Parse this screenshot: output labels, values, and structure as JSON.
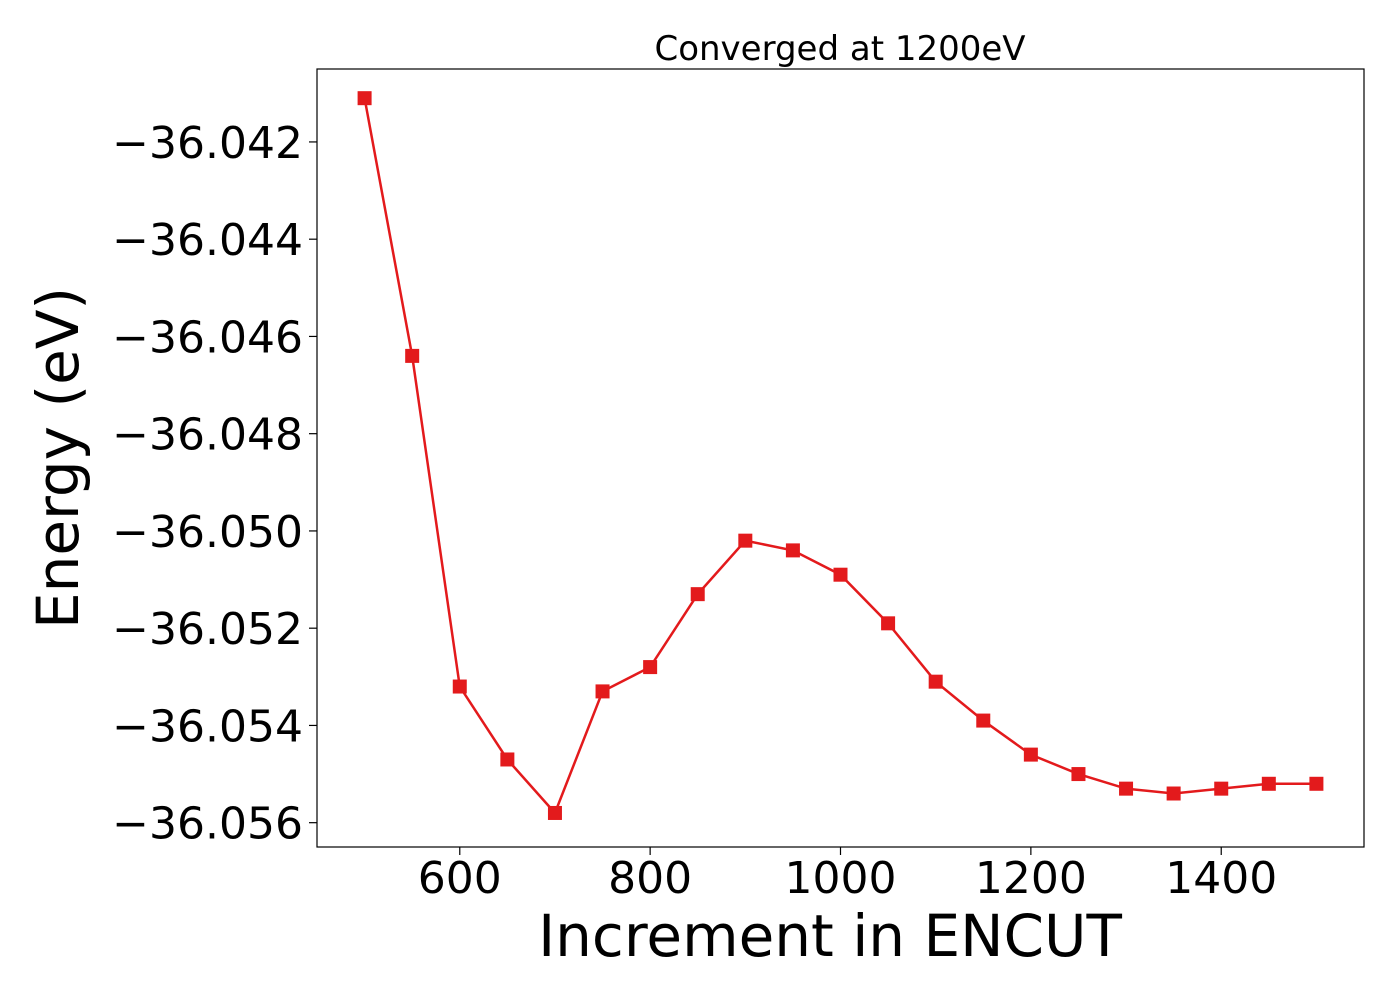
{
  "chart_data": {
    "type": "line",
    "title": "Converged at 1200eV",
    "xlabel": "Increment in ENCUT",
    "ylabel": "Energy (eV)",
    "xlim": [
      450,
      1550
    ],
    "ylim": [
      -36.0565,
      -36.0405
    ],
    "x_ticks": [
      600,
      800,
      1000,
      1200,
      1400
    ],
    "y_ticks": [
      -36.042,
      -36.044,
      -36.046,
      -36.048,
      -36.05,
      -36.052,
      -36.054,
      -36.056
    ],
    "x_tick_labels": [
      "600",
      "800",
      "1000",
      "1200",
      "1400"
    ],
    "y_tick_labels": [
      "−36.042",
      "−36.044",
      "−36.046",
      "−36.048",
      "−36.050",
      "−36.052",
      "−36.054",
      "−36.056"
    ],
    "grid": false,
    "legend": "none",
    "series": [
      {
        "color": "#e31a1c",
        "marker": "square",
        "x": [
          500,
          550,
          600,
          650,
          700,
          750,
          800,
          850,
          900,
          950,
          1000,
          1050,
          1100,
          1150,
          1200,
          1250,
          1300,
          1350,
          1400,
          1450,
          1500
        ],
        "y": [
          -36.0411,
          -36.0464,
          -36.0532,
          -36.0547,
          -36.0558,
          -36.0533,
          -36.0528,
          -36.0513,
          -36.0502,
          -36.0504,
          -36.0509,
          -36.0519,
          -36.0531,
          -36.0539,
          -36.0546,
          -36.055,
          -36.0553,
          -36.0554,
          -36.0553,
          -36.0552,
          -36.0552
        ]
      }
    ]
  }
}
